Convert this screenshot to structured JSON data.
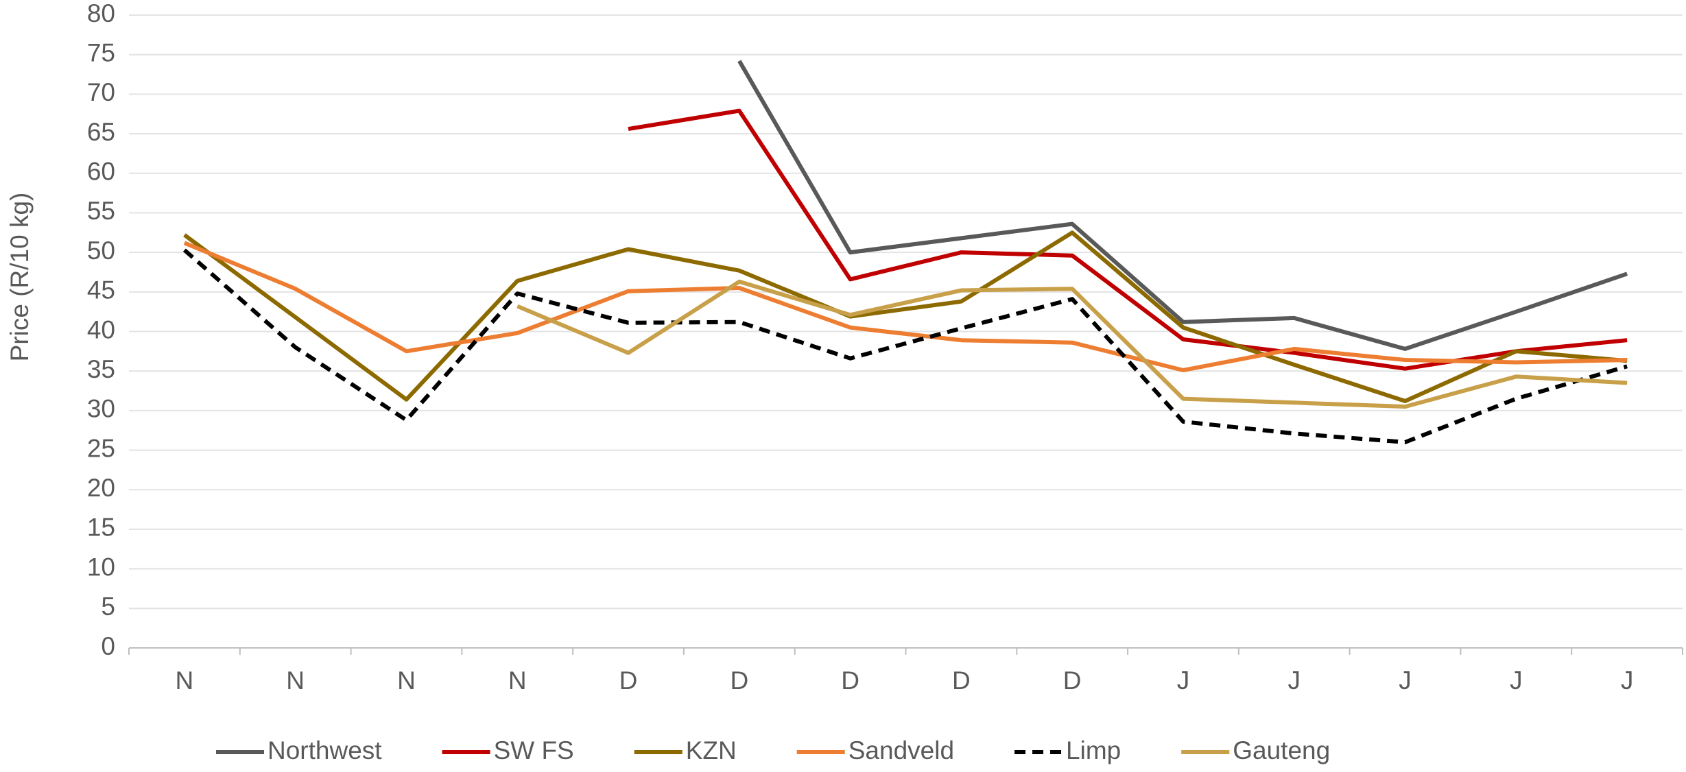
{
  "chart_data": {
    "type": "line",
    "y_label": "Price (R/10 kg)",
    "categories": [
      "N",
      "N",
      "N",
      "N",
      "D",
      "D",
      "D",
      "D",
      "D",
      "J",
      "J",
      "J",
      "J",
      "J"
    ],
    "ylim": [
      0,
      80
    ],
    "yticks": [
      0,
      5,
      10,
      15,
      20,
      25,
      30,
      35,
      40,
      45,
      50,
      55,
      60,
      65,
      70,
      75,
      80
    ],
    "grid": true,
    "legend": "bottom",
    "series": [
      {
        "name": "Northwest",
        "color": "#595959",
        "values": [
          null,
          null,
          null,
          null,
          null,
          74.2,
          50.0,
          51.8,
          53.6,
          41.2,
          41.7,
          37.8,
          42.5,
          47.3
        ]
      },
      {
        "name": "SW FS",
        "color": "#c00000",
        "values": [
          null,
          null,
          null,
          null,
          65.6,
          67.9,
          46.6,
          50.0,
          49.6,
          39.0,
          37.3,
          35.3,
          37.5,
          38.9
        ]
      },
      {
        "name": "KZN",
        "color": "#8c6a00",
        "values": [
          52.2,
          41.8,
          31.4,
          46.4,
          50.4,
          47.7,
          41.9,
          43.8,
          52.5,
          40.5,
          35.8,
          31.2,
          37.5,
          36.3
        ]
      },
      {
        "name": "Sandveld",
        "color": "#ed7d31",
        "values": [
          51.2,
          45.4,
          37.5,
          39.8,
          45.1,
          45.5,
          40.5,
          38.9,
          38.6,
          35.1,
          37.8,
          36.4,
          36.1,
          36.4
        ]
      },
      {
        "name": "Limp",
        "color": "#000000",
        "dashed": true,
        "values": [
          50.3,
          38.0,
          28.8,
          44.8,
          41.1,
          41.2,
          36.6,
          40.4,
          44.1,
          28.6,
          27.1,
          26.0,
          31.5,
          35.6
        ]
      },
      {
        "name": "Gauteng",
        "color": "#c9a04a",
        "values": [
          null,
          null,
          null,
          43.2,
          37.3,
          46.3,
          42.1,
          45.2,
          45.4,
          31.5,
          31.0,
          30.5,
          34.3,
          33.5
        ]
      }
    ]
  }
}
